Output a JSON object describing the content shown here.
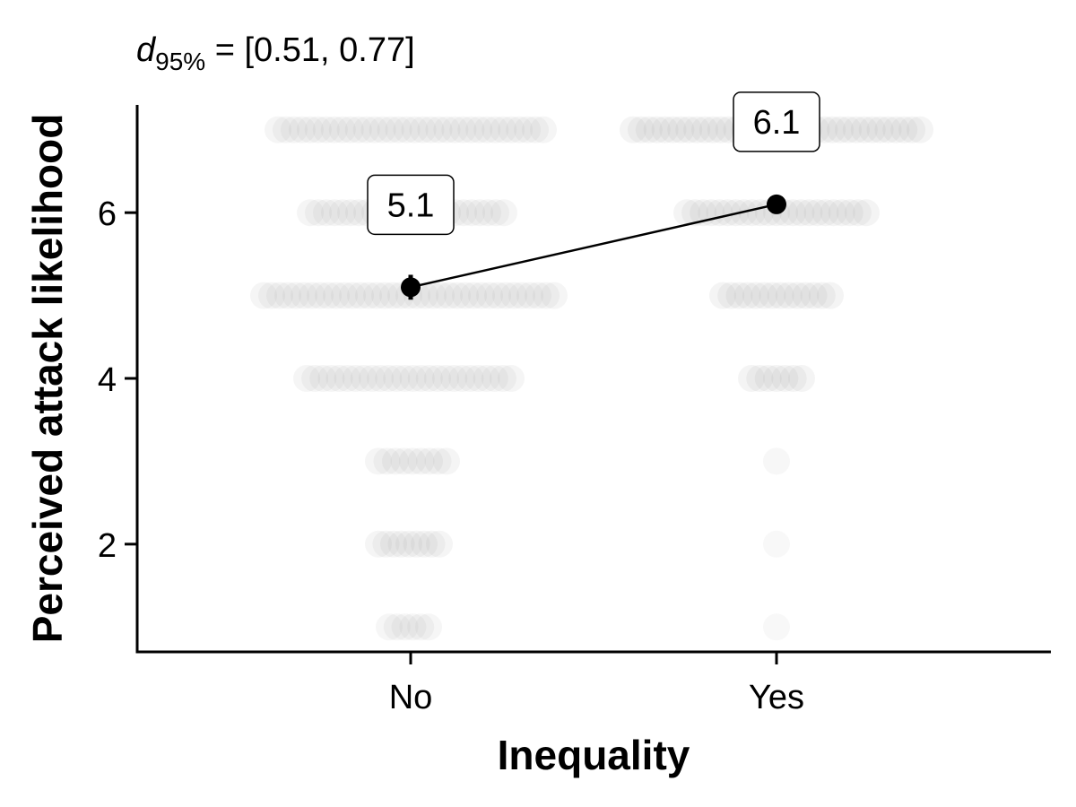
{
  "title": {
    "d_symbol": "d",
    "d_subscript": "95%",
    "interval_text": " = [0.51, 0.77]"
  },
  "chart_data": {
    "type": "scatter",
    "title": "d95% = [0.51, 0.77]",
    "xlabel": "Inequality",
    "ylabel": "Perceived attack likelihood",
    "categories": [
      "No",
      "Yes"
    ],
    "ylim": [
      0.7,
      7.3
    ],
    "yticks": [
      2,
      4,
      6
    ],
    "grid": false,
    "legend": "none",
    "means": [
      {
        "category": "No",
        "value": 5.1,
        "label": "5.1",
        "ci": [
          4.95,
          5.25
        ]
      },
      {
        "category": "Yes",
        "value": 6.1,
        "label": "6.1",
        "ci": [
          6.04,
          6.16
        ]
      }
    ],
    "jitter_points": [
      {
        "category": "No",
        "rows": [
          {
            "y": 7,
            "x_span": [
              -0.37,
              0.37
            ],
            "density": 0.5
          },
          {
            "y": 6,
            "x_span": [
              -0.28,
              0.26
            ],
            "density": 0.5
          },
          {
            "y": 5,
            "x_span": [
              -0.41,
              0.4
            ],
            "density": 0.5
          },
          {
            "y": 4,
            "x_span": [
              -0.29,
              0.28
            ],
            "density": 0.5
          },
          {
            "y": 3,
            "x_span": [
              -0.09,
              0.1
            ],
            "density": 0.45
          },
          {
            "y": 2,
            "x_span": [
              -0.09,
              0.08
            ],
            "density": 0.45
          },
          {
            "y": 1,
            "x_span": [
              -0.06,
              0.05
            ],
            "density": 0.4
          }
        ]
      },
      {
        "category": "Yes",
        "rows": [
          {
            "y": 7,
            "x_span": [
              -0.4,
              0.4
            ],
            "density": 0.6
          },
          {
            "y": 6,
            "x_span": [
              -0.25,
              0.25
            ],
            "density": 0.6
          },
          {
            "y": 5,
            "x_span": [
              -0.15,
              0.15
            ],
            "density": 0.6
          },
          {
            "y": 4,
            "x_span": [
              -0.07,
              0.07
            ],
            "density": 0.6
          },
          {
            "y": 3,
            "x_span": [
              0,
              0
            ],
            "density": 0.2
          },
          {
            "y": 2,
            "x_span": [
              0,
              0
            ],
            "density": 0.15
          },
          {
            "y": 1,
            "x_span": [
              0,
              0
            ],
            "density": 0.1
          }
        ]
      }
    ],
    "point_color": "#999999",
    "mean_color": "#000000"
  }
}
